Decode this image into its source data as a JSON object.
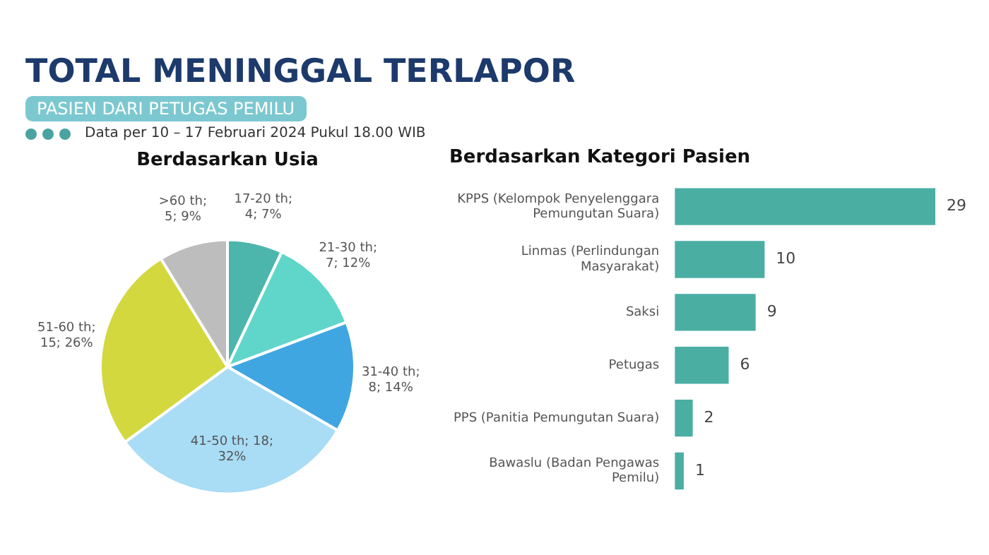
{
  "chart_data": [
    {
      "type": "other",
      "title": "TOTAL MENINGGAL TERLAPOR",
      "subtitle": "PASIEN DARI PETUGAS PEMILU",
      "annotations": [
        "Data per 10 – 17 Februari 2024 Pukul 18.00 WIB"
      ]
    },
    {
      "type": "pie",
      "title": "Berdasarkan Usia",
      "categories": [
        "17-20 th",
        "21-30 th",
        "31-40 th",
        "41-50 th",
        "51-60 th",
        ">60 th"
      ],
      "values": [
        4,
        7,
        8,
        18,
        15,
        5
      ],
      "colors": [
        "#4db6ac",
        "#5fd6c9",
        "#3fa6e2",
        "#a9dcf5",
        "#d2d83e",
        "#bdbdbd"
      ],
      "value_labels": [
        "; 4; 7%",
        "; 7; 12%",
        "; 8; 14%",
        "; 18; 32%",
        "; 15; 26%",
        "; 5; 9%"
      ]
    },
    {
      "type": "bar",
      "orientation": "horizontal",
      "title": "Berdasarkan Kategori Pasien",
      "categories": [
        "KPPS (Kelompok Penyelenggara Pemungutan Suara)",
        "Linmas (Perlindungan Masyarakat)",
        "Saksi",
        "Petugas",
        "PPS (Panitia Pemungutan Suara)",
        "Bawaslu (Badan Pengawas Pemilu)"
      ],
      "values": [
        29,
        10,
        9,
        6,
        2,
        1
      ],
      "color": "#4aaea3",
      "xlim": [
        0,
        29
      ],
      "data_labels": true,
      "tick_labels": "y",
      "grid": false
    }
  ]
}
